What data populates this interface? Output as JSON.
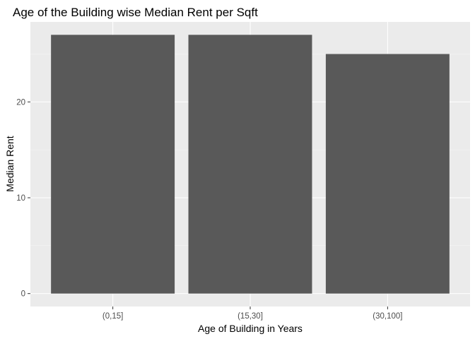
{
  "chart_data": {
    "type": "bar",
    "title": "Age of the Building wise Median Rent per Sqft",
    "xlabel": "Age of Building in Years",
    "ylabel": "Median Rent",
    "categories": [
      "(0,15]",
      "(15,30]",
      "(30,100]"
    ],
    "values": [
      27,
      27,
      25
    ],
    "ylim": [
      -1.35,
      28.35
    ],
    "yticks": [
      0,
      10,
      20
    ],
    "grid": true,
    "legend": "none",
    "colors": {
      "bar": "#595959",
      "panel": "#ebebeb",
      "grid_major": "#ffffff",
      "grid_minor": "#f5f5f5",
      "tick_label": "#4d4d4d",
      "text": "#000000"
    }
  }
}
